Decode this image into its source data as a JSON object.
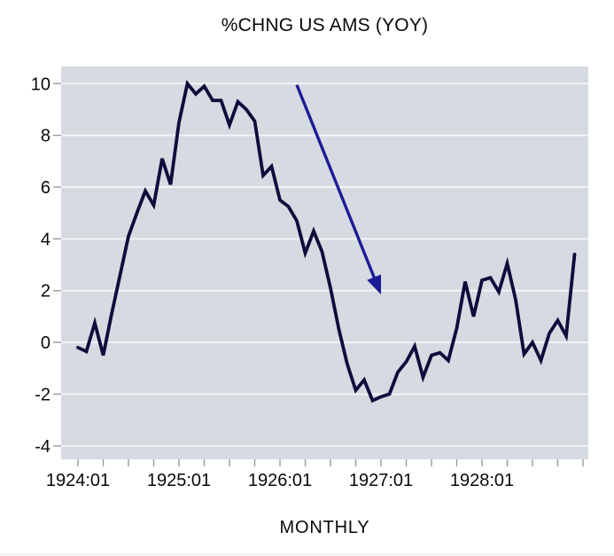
{
  "chart_data": {
    "type": "line",
    "title": "%CHNG US AMS (YOY)",
    "xlabel": "MONTHLY",
    "ylabel": "",
    "legend": "none",
    "grid": "horizontal-white-lines",
    "y_ticks": [
      10,
      8,
      6,
      4,
      2,
      0,
      -2,
      -4
    ],
    "ylim": [
      -4.52,
      10.66
    ],
    "x_major_labels": [
      "1924:01",
      "1925:01",
      "1926:01",
      "1927:01",
      "1928:01"
    ],
    "x_minor_tick_every_months": 3,
    "categories": [
      "1924:01",
      "1924:02",
      "1924:03",
      "1924:04",
      "1924:05",
      "1924:06",
      "1924:07",
      "1924:08",
      "1924:09",
      "1924:10",
      "1924:11",
      "1924:12",
      "1925:01",
      "1925:02",
      "1925:03",
      "1925:04",
      "1925:05",
      "1925:06",
      "1925:07",
      "1925:08",
      "1925:09",
      "1925:10",
      "1925:11",
      "1925:12",
      "1926:01",
      "1926:02",
      "1926:03",
      "1926:04",
      "1926:05",
      "1926:06",
      "1926:07",
      "1926:08",
      "1926:09",
      "1926:10",
      "1926:11",
      "1926:12",
      "1927:01",
      "1927:02",
      "1927:03",
      "1927:04",
      "1927:05",
      "1927:06",
      "1927:07",
      "1927:08",
      "1927:09",
      "1927:10",
      "1927:11",
      "1927:12",
      "1928:01",
      "1928:02",
      "1928:03",
      "1928:04",
      "1928:05",
      "1928:06",
      "1928:07",
      "1928:08",
      "1928:09",
      "1928:10",
      "1928:11",
      "1928:12"
    ],
    "series": [
      {
        "name": "%CHNG US AMS (YOY)",
        "values": [
          -0.2,
          -0.35,
          0.75,
          -0.5,
          1.1,
          2.6,
          4.1,
          5.0,
          5.85,
          5.3,
          7.1,
          6.1,
          8.5,
          10.0,
          9.6,
          9.9,
          9.35,
          9.35,
          8.4,
          9.3,
          9.0,
          8.55,
          6.45,
          6.8,
          5.5,
          5.25,
          4.7,
          3.45,
          4.3,
          3.5,
          2.1,
          0.5,
          -0.85,
          -1.85,
          -1.45,
          -2.25,
          -2.1,
          -2.0,
          -1.15,
          -0.75,
          -0.15,
          -1.35,
          -0.5,
          -0.4,
          -0.7,
          0.55,
          2.35,
          1.0,
          2.4,
          2.5,
          1.95,
          3.05,
          1.65,
          -0.45,
          0.0,
          -0.7,
          0.35,
          0.85,
          0.25,
          3.4
        ]
      }
    ],
    "annotations": [
      {
        "type": "arrow",
        "from": {
          "x": "1926:03",
          "y": 9.95
        },
        "to": {
          "x": "1927:01",
          "y": 1.85
        }
      }
    ],
    "colors": {
      "page_bg": "#ffffff",
      "plot_bg": "#d6dae1",
      "gridline": "#f3f4f6",
      "tick": "#9a9a9a",
      "line": "#0d0d3c",
      "arrow": "#1c1c96",
      "text": "#0a0a0a"
    }
  }
}
